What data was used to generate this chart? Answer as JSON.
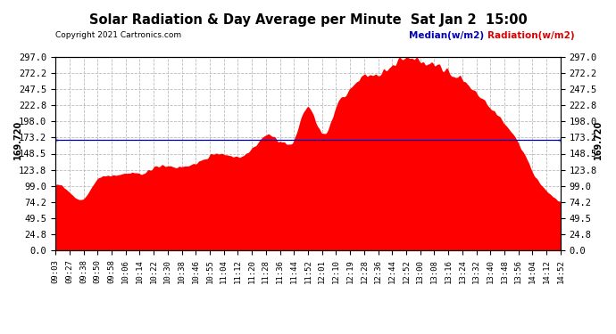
{
  "title": "Solar Radiation & Day Average per Minute  Sat Jan 2  15:00",
  "copyright": "Copyright 2021 Cartronics.com",
  "median_value": 169.72,
  "median_label": "Median(w/m2)",
  "radiation_label": "Radiation(w/m2)",
  "median_color": "#0000bb",
  "radiation_color": "#dd0000",
  "fill_color": "#ff0000",
  "background_color": "#ffffff",
  "grid_color": "#bbbbbb",
  "yticks": [
    0.0,
    24.8,
    49.5,
    74.2,
    99.0,
    123.8,
    148.5,
    173.2,
    198.0,
    222.8,
    247.5,
    272.2,
    297.0
  ],
  "ylim": [
    0,
    297.0
  ],
  "xtick_labels": [
    "09:03",
    "09:27",
    "09:38",
    "09:50",
    "09:58",
    "10:06",
    "10:14",
    "10:22",
    "10:30",
    "10:38",
    "10:46",
    "10:55",
    "11:04",
    "11:12",
    "11:20",
    "11:28",
    "11:36",
    "11:44",
    "11:52",
    "12:01",
    "12:10",
    "12:19",
    "12:28",
    "12:36",
    "12:44",
    "12:52",
    "13:00",
    "13:08",
    "13:16",
    "13:24",
    "13:32",
    "13:40",
    "13:48",
    "13:56",
    "14:04",
    "14:12",
    "14:52"
  ],
  "radiation_data": [
    99,
    90,
    80,
    110,
    115,
    120,
    118,
    125,
    130,
    128,
    135,
    145,
    148,
    142,
    155,
    175,
    168,
    172,
    220,
    180,
    220,
    250,
    270,
    265,
    285,
    297,
    290,
    285,
    270,
    260,
    240,
    220,
    195,
    165,
    120,
    90,
    75
  ]
}
